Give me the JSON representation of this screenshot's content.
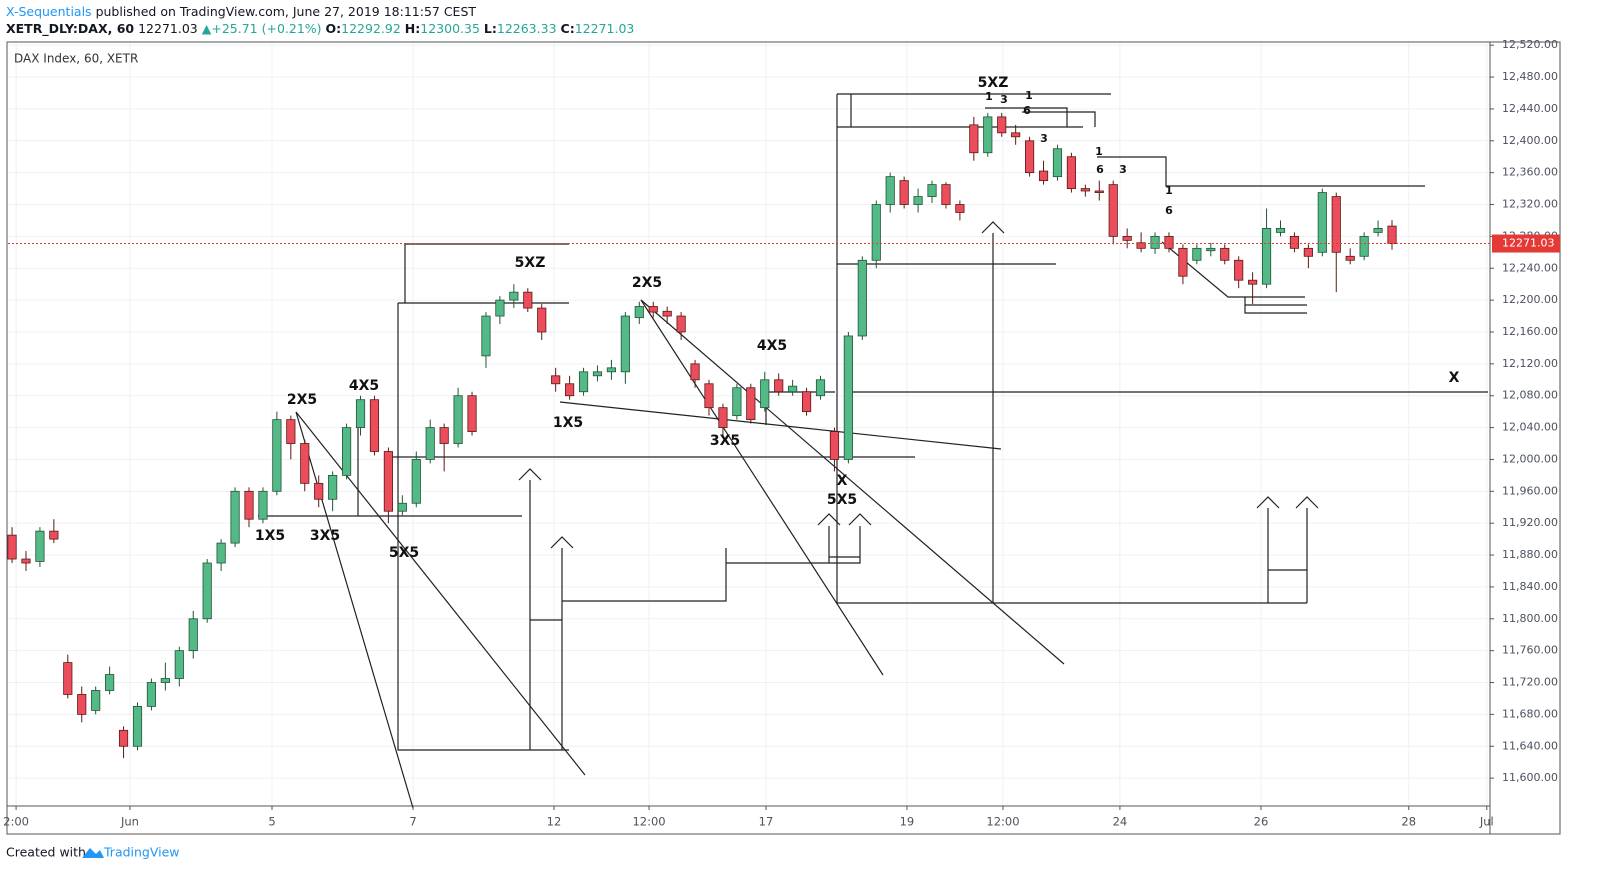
{
  "header": {
    "author": "X-Sequentials",
    "published": "published on TradingView.com, June 27, 2019 18:11:57 CEST",
    "symbol": "XETR_DLY:DAX, 60",
    "price": "12271.03",
    "arrow": "▲",
    "change": "+25.71 (+0.21%)",
    "o_label": "O:",
    "o": "12292.92",
    "h_label": "H:",
    "h": "12300.35",
    "l_label": "L:",
    "l": "12263.33",
    "c_label": "C:",
    "c": "12271.03"
  },
  "footer": {
    "created": "Created with",
    "brand": "TradingView"
  },
  "chart_data": {
    "type": "candlestick",
    "legend": "DAX Index, 60, XETR",
    "up_color": "#53b987",
    "down_color": "#eb4d5c",
    "last_price": 12271.03,
    "last_price_label": "12271.03",
    "grid": true,
    "xlim": [
      -0.29,
      106.03
    ],
    "xticks": [
      {
        "value": 0.29,
        "label": "2:00"
      },
      {
        "value": 8.46,
        "label": "Jun"
      },
      {
        "value": 18.65,
        "label": "5"
      },
      {
        "value": 28.77,
        "label": "7"
      },
      {
        "value": 38.88,
        "label": "12"
      },
      {
        "value": 45.7,
        "label": "12:00"
      },
      {
        "value": 54.09,
        "label": "17"
      },
      {
        "value": 64.2,
        "label": "19"
      },
      {
        "value": 71.09,
        "label": "12:00"
      },
      {
        "value": 79.48,
        "label": "24"
      },
      {
        "value": 89.6,
        "label": "26"
      },
      {
        "value": 100.2,
        "label": "28"
      },
      {
        "value": 105.8,
        "label": "Jul"
      }
    ],
    "ylim": [
      11565,
      12524
    ],
    "yticks": [
      {
        "value": 11600,
        "label": "11,600.00"
      },
      {
        "value": 11640,
        "label": "11,640.00"
      },
      {
        "value": 11680,
        "label": "11,680.00"
      },
      {
        "value": 11720,
        "label": "11,720.00"
      },
      {
        "value": 11760,
        "label": "11,760.00"
      },
      {
        "value": 11800,
        "label": "11,800.00"
      },
      {
        "value": 11840,
        "label": "11,840.00"
      },
      {
        "value": 11880,
        "label": "11,880.00"
      },
      {
        "value": 11920,
        "label": "11,920.00"
      },
      {
        "value": 11960,
        "label": "11,960.00"
      },
      {
        "value": 12000,
        "label": "12,000.00"
      },
      {
        "value": 12040,
        "label": "12,040.00"
      },
      {
        "value": 12080,
        "label": "12,080.00"
      },
      {
        "value": 12120,
        "label": "12,120.00"
      },
      {
        "value": 12160,
        "label": "12,160.00"
      },
      {
        "value": 12200,
        "label": "12,200.00"
      },
      {
        "value": 12240,
        "label": "12,240.00"
      },
      {
        "value": 12280,
        "label": "12,280.00"
      },
      {
        "value": 12320,
        "label": "12,320.00"
      },
      {
        "value": 12360,
        "label": "12,360.00"
      },
      {
        "value": 12400,
        "label": "12,400.00"
      },
      {
        "value": 12440,
        "label": "12,440.00"
      },
      {
        "value": 12480,
        "label": "12,480.00"
      },
      {
        "value": 12520,
        "label": "12,520.00"
      }
    ],
    "candles": [
      [
        11905,
        11915,
        11870,
        11875
      ],
      [
        11875,
        11885,
        11860,
        11870
      ],
      [
        11872,
        11915,
        11865,
        11910
      ],
      [
        11910,
        11925,
        11895,
        11900
      ],
      [
        11745,
        11755,
        11700,
        11705
      ],
      [
        11705,
        11715,
        11670,
        11680
      ],
      [
        11685,
        11715,
        11680,
        11710
      ],
      [
        11710,
        11740,
        11705,
        11730
      ],
      [
        11660,
        11665,
        11625,
        11640
      ],
      [
        11640,
        11695,
        11635,
        11690
      ],
      [
        11690,
        11725,
        11685,
        11720
      ],
      [
        11720,
        11745,
        11710,
        11725
      ],
      [
        11725,
        11765,
        11715,
        11760
      ],
      [
        11760,
        11810,
        11750,
        11800
      ],
      [
        11800,
        11875,
        11795,
        11870
      ],
      [
        11870,
        11900,
        11860,
        11895
      ],
      [
        11895,
        11965,
        11890,
        11960
      ],
      [
        11960,
        11965,
        11915,
        11925
      ],
      [
        11925,
        11965,
        11920,
        11960
      ],
      [
        11960,
        12060,
        11955,
        12050
      ],
      [
        12050,
        12055,
        12000,
        12020
      ],
      [
        12020,
        12025,
        11960,
        11970
      ],
      [
        11970,
        11980,
        11940,
        11950
      ],
      [
        11950,
        11985,
        11935,
        11980
      ],
      [
        11980,
        12045,
        11975,
        12040
      ],
      [
        12040,
        12080,
        12030,
        12075
      ],
      [
        12075,
        12080,
        12005,
        12010
      ],
      [
        12010,
        12015,
        11920,
        11935
      ],
      [
        11935,
        11955,
        11930,
        11945
      ],
      [
        11945,
        12010,
        11940,
        12000
      ],
      [
        12000,
        12050,
        11995,
        12040
      ],
      [
        12040,
        12045,
        11985,
        12020
      ],
      [
        12020,
        12090,
        12015,
        12080
      ],
      [
        12080,
        12085,
        12030,
        12035
      ],
      [
        12130,
        12185,
        12115,
        12180
      ],
      [
        12180,
        12205,
        12170,
        12200
      ],
      [
        12200,
        12220,
        12190,
        12210
      ],
      [
        12210,
        12215,
        12185,
        12190
      ],
      [
        12190,
        12195,
        12150,
        12160
      ],
      [
        12105,
        12115,
        12085,
        12095
      ],
      [
        12095,
        12105,
        12075,
        12080
      ],
      [
        12085,
        12115,
        12080,
        12110
      ],
      [
        12105,
        12118,
        12098,
        12110
      ],
      [
        12110,
        12125,
        12100,
        12115
      ],
      [
        12110,
        12185,
        12095,
        12180
      ],
      [
        12178,
        12198,
        12170,
        12192
      ],
      [
        12192,
        12198,
        12178,
        12185
      ],
      [
        12186,
        12192,
        12170,
        12180
      ],
      [
        12180,
        12185,
        12150,
        12160
      ],
      [
        12120,
        12125,
        12090,
        12100
      ],
      [
        12095,
        12100,
        12055,
        12065
      ],
      [
        12065,
        12070,
        12030,
        12040
      ],
      [
        12055,
        12095,
        12050,
        12090
      ],
      [
        12090,
        12095,
        12045,
        12050
      ],
      [
        12065,
        12110,
        12060,
        12100
      ],
      [
        12100,
        12108,
        12080,
        12085
      ],
      [
        12085,
        12100,
        12080,
        12092
      ],
      [
        12085,
        12090,
        12055,
        12060
      ],
      [
        12080,
        12105,
        12075,
        12100
      ],
      [
        12035,
        12040,
        11985,
        12000
      ],
      [
        12000,
        12160,
        11995,
        12155
      ],
      [
        12155,
        12255,
        12150,
        12250
      ],
      [
        12250,
        12325,
        12240,
        12320
      ],
      [
        12320,
        12360,
        12310,
        12355
      ],
      [
        12350,
        12355,
        12315,
        12320
      ],
      [
        12320,
        12340,
        12310,
        12330
      ],
      [
        12330,
        12350,
        12322,
        12345
      ],
      [
        12345,
        12348,
        12315,
        12320
      ],
      [
        12320,
        12325,
        12300,
        12310
      ],
      [
        12420,
        12430,
        12375,
        12385
      ],
      [
        12385,
        12435,
        12380,
        12430
      ],
      [
        12430,
        12435,
        12405,
        12410
      ],
      [
        12410,
        12420,
        12395,
        12405
      ],
      [
        12400,
        12405,
        12355,
        12360
      ],
      [
        12362,
        12375,
        12345,
        12350
      ],
      [
        12355,
        12395,
        12350,
        12390
      ],
      [
        12380,
        12385,
        12335,
        12340
      ],
      [
        12340,
        12345,
        12330,
        12337
      ],
      [
        12337,
        12350,
        12325,
        12335
      ],
      [
        12345,
        12350,
        12270,
        12280
      ],
      [
        12280,
        12290,
        12265,
        12275
      ],
      [
        12272,
        12285,
        12260,
        12265
      ],
      [
        12265,
        12285,
        12258,
        12280
      ],
      [
        12280,
        12285,
        12260,
        12265
      ],
      [
        12265,
        12270,
        12220,
        12230
      ],
      [
        12250,
        12270,
        12245,
        12265
      ],
      [
        12262,
        12272,
        12255,
        12265
      ],
      [
        12265,
        12270,
        12245,
        12250
      ],
      [
        12250,
        12255,
        12215,
        12225
      ],
      [
        12225,
        12235,
        12195,
        12220
      ],
      [
        12220,
        12315,
        12215,
        12290
      ],
      [
        12285,
        12300,
        12280,
        12290
      ],
      [
        12280,
        12285,
        12260,
        12265
      ],
      [
        12265,
        12270,
        12240,
        12255
      ],
      [
        12260,
        12340,
        12255,
        12335
      ],
      [
        12330,
        12335,
        12210,
        12260
      ],
      [
        12255,
        12265,
        12245,
        12250
      ],
      [
        12255,
        12285,
        12250,
        12280
      ],
      [
        12285,
        12300,
        12280,
        12290
      ],
      [
        12292.92,
        12300.35,
        12263.33,
        12271.03
      ]
    ],
    "annotations": [
      "2X5",
      "4X5",
      "1X5",
      "3X5",
      "5X5",
      "5XZ",
      "1X5",
      "2X5",
      "4X5",
      "3X5",
      "X",
      "5X5",
      "5XZ",
      "X",
      "1",
      "3",
      "1",
      "6",
      "3",
      "1",
      "6",
      "3",
      "1",
      "6"
    ]
  }
}
